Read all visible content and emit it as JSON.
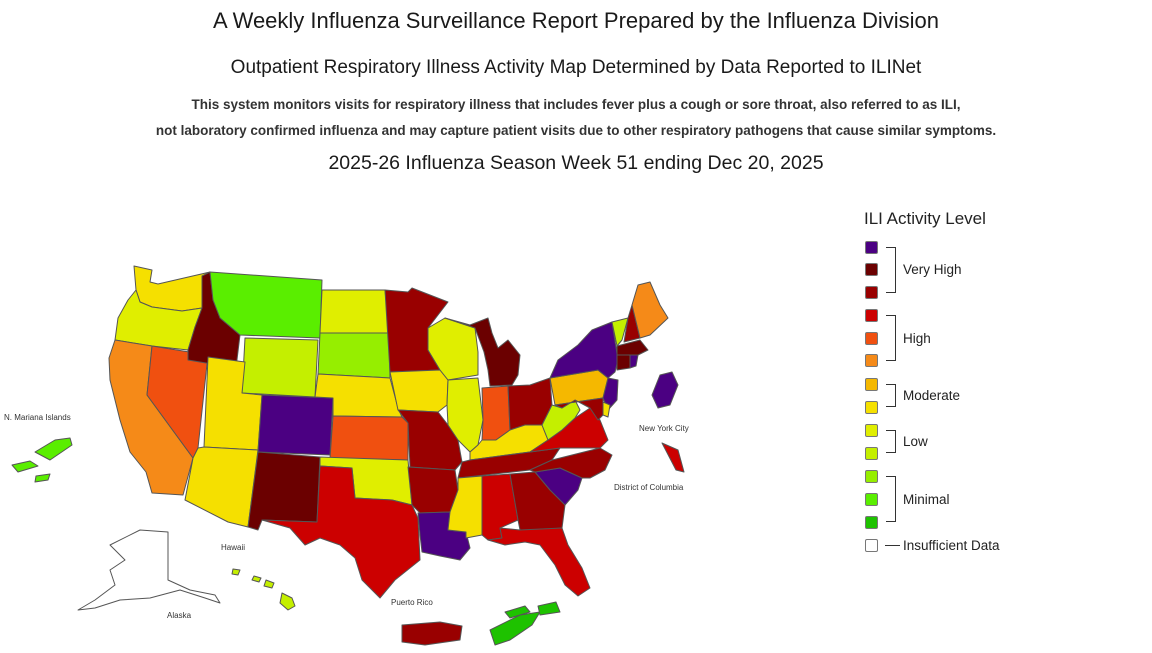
{
  "header": {
    "title": "A Weekly Influenza Surveillance Report Prepared by the Influenza Division",
    "subtitle": "Outpatient Respiratory Illness Activity Map Determined by Data Reported to ILINet",
    "description_line1": "This system monitors visits for respiratory illness that includes fever plus a cough or sore throat, also referred to as ILI,",
    "description_line2": "not laboratory confirmed influenza and may capture patient visits due to other respiratory pathogens that cause similar symptoms.",
    "season": "2025-26 Influenza Season Week 51 ending Dec 20, 2025"
  },
  "map_labels": {
    "n_mariana": "N. Mariana Islands",
    "nyc": "New York City",
    "dc": "District of Columbia",
    "hawaii": "Hawaii",
    "alaska": "Alaska",
    "puerto_rico": "Puerto Rico"
  },
  "legend": {
    "title": "ILI Activity Level",
    "levels": [
      {
        "level": 13,
        "color": "#4b0082"
      },
      {
        "level": 12,
        "color": "#6b0000"
      },
      {
        "level": 11,
        "color": "#990000"
      },
      {
        "level": 10,
        "color": "#cc0000"
      },
      {
        "level": 9,
        "color": "#f05010"
      },
      {
        "level": 8,
        "color": "#f58a18"
      },
      {
        "level": 7,
        "color": "#f5b800"
      },
      {
        "level": 6,
        "color": "#f5e000"
      },
      {
        "level": 5,
        "color": "#e0ee00"
      },
      {
        "level": 4,
        "color": "#c4ef00"
      },
      {
        "level": 3,
        "color": "#96ee00"
      },
      {
        "level": 2,
        "color": "#5aee00"
      },
      {
        "level": 1,
        "color": "#1ec200"
      }
    ],
    "groups": {
      "very_high": "Very High",
      "high": "High",
      "moderate": "Moderate",
      "low": "Low",
      "minimal": "Minimal",
      "insufficient": "Insufficient Data"
    },
    "insufficient_color": "#ffffff"
  },
  "states": [
    {
      "abbr": "WA",
      "level": 6
    },
    {
      "abbr": "OR",
      "level": 5
    },
    {
      "abbr": "CA",
      "level": 8
    },
    {
      "abbr": "NV",
      "level": 9
    },
    {
      "abbr": "ID",
      "level": 12
    },
    {
      "abbr": "MT",
      "level": 2
    },
    {
      "abbr": "WY",
      "level": 4
    },
    {
      "abbr": "UT",
      "level": 6
    },
    {
      "abbr": "AZ",
      "level": 6
    },
    {
      "abbr": "CO",
      "level": 13
    },
    {
      "abbr": "NM",
      "level": 12
    },
    {
      "abbr": "ND",
      "level": 5
    },
    {
      "abbr": "SD",
      "level": 3
    },
    {
      "abbr": "NE",
      "level": 6
    },
    {
      "abbr": "KS",
      "level": 9
    },
    {
      "abbr": "OK",
      "level": 5
    },
    {
      "abbr": "TX",
      "level": 10
    },
    {
      "abbr": "MN",
      "level": 11
    },
    {
      "abbr": "IA",
      "level": 6
    },
    {
      "abbr": "MO",
      "level": 11
    },
    {
      "abbr": "AR",
      "level": 11
    },
    {
      "abbr": "LA",
      "level": 13
    },
    {
      "abbr": "WI",
      "level": 5
    },
    {
      "abbr": "IL",
      "level": 5
    },
    {
      "abbr": "MI",
      "level": 12
    },
    {
      "abbr": "IN",
      "level": 9
    },
    {
      "abbr": "OH",
      "level": 11
    },
    {
      "abbr": "KY",
      "level": 6
    },
    {
      "abbr": "TN",
      "level": 11
    },
    {
      "abbr": "MS",
      "level": 6
    },
    {
      "abbr": "AL",
      "level": 10
    },
    {
      "abbr": "GA",
      "level": 11
    },
    {
      "abbr": "FL",
      "level": 10
    },
    {
      "abbr": "SC",
      "level": 13
    },
    {
      "abbr": "NC",
      "level": 11
    },
    {
      "abbr": "VA",
      "level": 10
    },
    {
      "abbr": "WV",
      "level": 4
    },
    {
      "abbr": "PA",
      "level": 7
    },
    {
      "abbr": "NY",
      "level": 13
    },
    {
      "abbr": "VT",
      "level": 4
    },
    {
      "abbr": "NH",
      "level": 11
    },
    {
      "abbr": "ME",
      "level": 8
    },
    {
      "abbr": "MA",
      "level": 12
    },
    {
      "abbr": "CT",
      "level": 12
    },
    {
      "abbr": "RI",
      "level": 13
    },
    {
      "abbr": "NJ",
      "level": 13
    },
    {
      "abbr": "DE",
      "level": 6
    },
    {
      "abbr": "MD",
      "level": 11
    },
    {
      "abbr": "AK",
      "level": 0
    },
    {
      "abbr": "HI",
      "level": 4
    },
    {
      "abbr": "PR",
      "level": 11
    },
    {
      "abbr": "MP",
      "level": 2
    },
    {
      "abbr": "USVI",
      "level": 1
    },
    {
      "abbr": "NYC",
      "level": 10
    },
    {
      "abbr": "DC",
      "level": 13
    }
  ]
}
